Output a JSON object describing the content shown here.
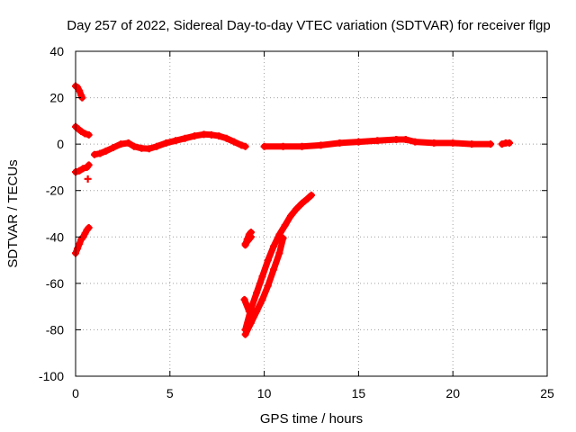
{
  "chart_data": {
    "type": "scatter",
    "title": "Day 257 of 2022, Sidereal Day-to-day VTEC variation (SDTVAR) for receiver flgp",
    "xlabel": "GPS time / hours",
    "ylabel": "SDTVAR / TECUs",
    "xlim": [
      0,
      25
    ],
    "ylim": [
      -100,
      40
    ],
    "xticks": [
      0,
      5,
      10,
      15,
      20,
      25
    ],
    "yticks": [
      -100,
      -80,
      -60,
      -40,
      -20,
      0,
      20,
      40
    ],
    "grid": true,
    "marker": "+",
    "color": "#ff0000",
    "series": [
      {
        "points": [
          [
            0.0,
            25
          ],
          [
            0.1,
            24.5
          ],
          [
            0.2,
            23
          ],
          [
            0.3,
            21
          ],
          [
            0.35,
            20
          ]
        ]
      },
      {
        "points": [
          [
            0.0,
            7.5
          ],
          [
            0.15,
            6.5
          ],
          [
            0.3,
            5.5
          ],
          [
            0.5,
            4.5
          ],
          [
            0.7,
            4
          ]
        ]
      },
      {
        "points": [
          [
            0.0,
            -12
          ],
          [
            0.2,
            -11.5
          ],
          [
            0.4,
            -10.5
          ],
          [
            0.6,
            -10
          ],
          [
            0.7,
            -9
          ]
        ]
      },
      {
        "points": [
          [
            0.65,
            -15
          ]
        ]
      },
      {
        "points": [
          [
            0.0,
            -47
          ],
          [
            0.1,
            -45
          ],
          [
            0.2,
            -43
          ],
          [
            0.3,
            -41
          ],
          [
            0.4,
            -40
          ],
          [
            0.5,
            -38.5
          ],
          [
            0.6,
            -37
          ],
          [
            0.7,
            -36
          ]
        ]
      },
      {
        "points": [
          [
            1.0,
            -4.5
          ],
          [
            1.3,
            -4
          ],
          [
            1.6,
            -3
          ],
          [
            2.0,
            -1.5
          ],
          [
            2.4,
            0
          ],
          [
            2.8,
            0.5
          ],
          [
            3.1,
            -1
          ],
          [
            3.5,
            -1.8
          ],
          [
            3.9,
            -2
          ],
          [
            4.3,
            -1
          ],
          [
            4.8,
            0.5
          ],
          [
            5.3,
            1.5
          ],
          [
            5.8,
            2.5
          ],
          [
            6.3,
            3.5
          ],
          [
            6.8,
            4.2
          ],
          [
            7.2,
            4
          ],
          [
            7.6,
            3.5
          ],
          [
            8.0,
            2.5
          ],
          [
            8.4,
            1
          ],
          [
            8.8,
            -0.5
          ],
          [
            9.0,
            -1
          ]
        ]
      },
      {
        "points": [
          [
            9.0,
            -80
          ],
          [
            9.3,
            -71
          ],
          [
            9.6,
            -64
          ],
          [
            9.9,
            -57
          ],
          [
            10.2,
            -50
          ],
          [
            10.5,
            -44
          ],
          [
            10.8,
            -39
          ],
          [
            11.1,
            -35
          ],
          [
            11.4,
            -31
          ],
          [
            11.7,
            -28
          ],
          [
            12.0,
            -25.5
          ],
          [
            12.3,
            -23.5
          ],
          [
            12.5,
            -22
          ]
        ]
      },
      {
        "points": [
          [
            9.0,
            -82
          ],
          [
            9.3,
            -77
          ],
          [
            9.6,
            -72
          ],
          [
            9.9,
            -67
          ],
          [
            10.2,
            -61
          ],
          [
            10.5,
            -54
          ],
          [
            10.8,
            -47
          ],
          [
            11.0,
            -40.5
          ]
        ]
      },
      {
        "points": [
          [
            8.95,
            -67
          ],
          [
            9.2,
            -72
          ]
        ]
      },
      {
        "points": [
          [
            9.0,
            -43.5
          ],
          [
            9.1,
            -41
          ],
          [
            9.2,
            -39
          ],
          [
            9.3,
            -38
          ]
        ]
      },
      {
        "points": [
          [
            9.0,
            -43
          ],
          [
            9.3,
            -40
          ]
        ]
      },
      {
        "points": [
          [
            10.0,
            -1
          ],
          [
            11.0,
            -1
          ],
          [
            12.0,
            -1
          ],
          [
            13.0,
            -0.5
          ],
          [
            14.0,
            0.5
          ],
          [
            15.0,
            1
          ],
          [
            16.0,
            1.5
          ],
          [
            17.0,
            2
          ],
          [
            17.5,
            2
          ],
          [
            18.0,
            1
          ],
          [
            19.0,
            0.5
          ],
          [
            20.0,
            0.5
          ],
          [
            21.0,
            0
          ],
          [
            22.0,
            0
          ]
        ]
      },
      {
        "points": [
          [
            22.6,
            0
          ],
          [
            22.8,
            0.5
          ],
          [
            23.0,
            0.5
          ]
        ]
      }
    ]
  }
}
